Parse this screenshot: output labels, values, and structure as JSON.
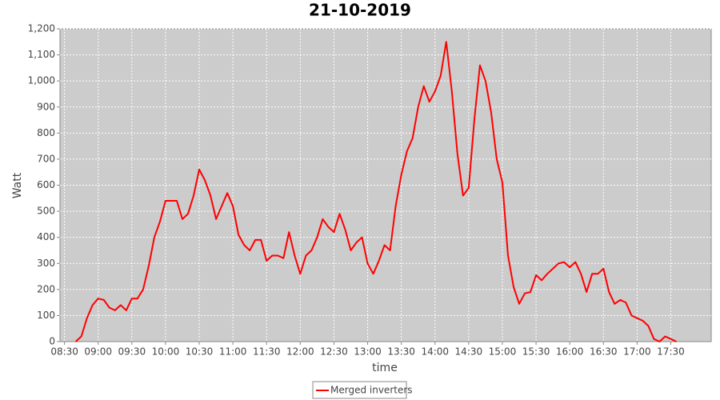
{
  "chart_data": {
    "type": "line",
    "title": "21-10-2019",
    "x_label": "time",
    "y_label": "Watt",
    "x": [
      "08:40",
      "08:45",
      "08:50",
      "08:55",
      "09:00",
      "09:05",
      "09:10",
      "09:15",
      "09:20",
      "09:25",
      "09:30",
      "09:35",
      "09:40",
      "09:45",
      "09:50",
      "09:55",
      "10:00",
      "10:05",
      "10:10",
      "10:15",
      "10:20",
      "10:25",
      "10:30",
      "10:35",
      "10:40",
      "10:45",
      "10:50",
      "10:55",
      "11:00",
      "11:05",
      "11:10",
      "11:15",
      "11:20",
      "11:25",
      "11:30",
      "11:35",
      "11:40",
      "11:45",
      "11:50",
      "11:55",
      "12:00",
      "12:05",
      "12:10",
      "12:15",
      "12:20",
      "12:25",
      "12:30",
      "12:35",
      "12:40",
      "12:45",
      "12:50",
      "12:55",
      "13:00",
      "13:05",
      "13:10",
      "13:15",
      "13:20",
      "13:25",
      "13:30",
      "13:35",
      "13:40",
      "13:45",
      "13:50",
      "13:55",
      "14:00",
      "14:05",
      "14:10",
      "14:15",
      "14:20",
      "14:25",
      "14:30",
      "14:35",
      "14:40",
      "14:45",
      "14:50",
      "14:55",
      "15:00",
      "15:05",
      "15:10",
      "15:15",
      "15:20",
      "15:25",
      "15:30",
      "15:35",
      "15:40",
      "15:45",
      "15:50",
      "15:55",
      "16:00",
      "16:05",
      "16:10",
      "16:15",
      "16:20",
      "16:25",
      "16:30",
      "16:35",
      "16:40",
      "16:45",
      "16:50",
      "16:55",
      "17:00",
      "17:05",
      "17:10",
      "17:15",
      "17:20",
      "17:25",
      "17:30",
      "17:35"
    ],
    "series": [
      {
        "name": "Merged inverters",
        "color": "#ff0000",
        "values": [
          0,
          20,
          90,
          140,
          165,
          160,
          130,
          120,
          140,
          120,
          165,
          165,
          200,
          290,
          400,
          460,
          540,
          540,
          540,
          470,
          490,
          560,
          660,
          620,
          560,
          470,
          520,
          570,
          520,
          410,
          370,
          350,
          390,
          390,
          310,
          330,
          330,
          320,
          420,
          330,
          260,
          330,
          350,
          400,
          470,
          440,
          420,
          490,
          430,
          350,
          380,
          400,
          300,
          260,
          310,
          370,
          350,
          520,
          640,
          730,
          780,
          900,
          980,
          920,
          960,
          1020,
          1150,
          960,
          720,
          560,
          590,
          850,
          1060,
          1000,
          880,
          700,
          610,
          330,
          210,
          145,
          185,
          190,
          255,
          235,
          260,
          280,
          300,
          305,
          285,
          305,
          260,
          190,
          260,
          260,
          280,
          190,
          145,
          160,
          150,
          100,
          90,
          80,
          60,
          10,
          0,
          20,
          10,
          0
        ]
      }
    ],
    "xlim": [
      "08:26",
      "18:06"
    ],
    "xticks": [
      "08:30",
      "09:00",
      "09:30",
      "10:00",
      "10:30",
      "11:00",
      "11:30",
      "12:00",
      "12:30",
      "13:00",
      "13:30",
      "14:00",
      "14:30",
      "15:00",
      "15:30",
      "16:00",
      "16:30",
      "17:00",
      "17:30"
    ],
    "ylim": [
      0,
      1200
    ],
    "yticks": [
      0,
      100,
      200,
      300,
      400,
      500,
      600,
      700,
      800,
      900,
      {
        "value": 1000,
        "label": "1,000"
      },
      {
        "value": 1100,
        "label": "1,100"
      },
      {
        "value": 1200,
        "label": "1,200"
      }
    ],
    "grid": true,
    "legend": "bottom"
  }
}
